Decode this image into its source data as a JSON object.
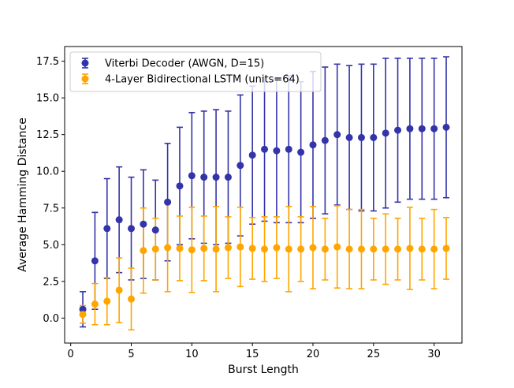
{
  "chart_data": {
    "type": "scatter",
    "title": "",
    "xlabel": "Burst Length",
    "ylabel": "Average Hamming Distance",
    "xlim": [
      -0.5,
      32.3
    ],
    "ylim": [
      -1.7,
      18.5
    ],
    "xticks": [
      0,
      5,
      10,
      15,
      20,
      25,
      30
    ],
    "xtick_labels": [
      "0",
      "5",
      "10",
      "15",
      "20",
      "25",
      "30"
    ],
    "yticks": [
      0.0,
      2.5,
      5.0,
      7.5,
      10.0,
      12.5,
      15.0,
      17.5
    ],
    "ytick_labels": [
      "0.0",
      "2.5",
      "5.0",
      "7.5",
      "10.0",
      "12.5",
      "15.0",
      "17.5"
    ],
    "grid": false,
    "legend_position": "upper-left",
    "series": [
      {
        "name": "Viterbi Decoder (AWGN, D=15)",
        "color": "#3333aa",
        "x": [
          1,
          2,
          3,
          4,
          5,
          6,
          7,
          8,
          9,
          10,
          11,
          12,
          13,
          14,
          15,
          16,
          17,
          18,
          19,
          20,
          21,
          22,
          23,
          24,
          25,
          26,
          27,
          28,
          29,
          30,
          31
        ],
        "y": [
          0.6,
          3.9,
          6.1,
          6.7,
          6.1,
          6.4,
          6.0,
          7.9,
          9.0,
          9.7,
          9.6,
          9.6,
          9.6,
          10.4,
          11.1,
          11.5,
          11.4,
          11.5,
          11.3,
          11.8,
          12.1,
          12.5,
          12.3,
          12.3,
          12.3,
          12.6,
          12.8,
          12.9,
          12.9,
          12.9,
          13.0
        ],
        "err": [
          1.2,
          3.3,
          3.4,
          3.6,
          3.5,
          3.7,
          3.4,
          4.0,
          4.0,
          4.3,
          4.5,
          4.6,
          4.5,
          4.8,
          4.7,
          4.9,
          4.9,
          5.0,
          4.8,
          5.0,
          5.0,
          4.8,
          4.9,
          5.0,
          5.0,
          5.1,
          4.9,
          4.8,
          4.8,
          4.8,
          4.8
        ]
      },
      {
        "name": "4-Layer Bidirectional LSTM (units=64)",
        "color": "#ffa500",
        "x": [
          1,
          2,
          3,
          4,
          5,
          6,
          7,
          8,
          9,
          10,
          11,
          12,
          13,
          14,
          15,
          16,
          17,
          18,
          19,
          20,
          21,
          22,
          23,
          24,
          25,
          26,
          27,
          28,
          29,
          30,
          31
        ],
        "y": [
          0.25,
          0.95,
          1.15,
          1.9,
          1.3,
          4.6,
          4.7,
          4.8,
          4.75,
          4.65,
          4.75,
          4.7,
          4.8,
          4.85,
          4.75,
          4.7,
          4.8,
          4.7,
          4.7,
          4.8,
          4.7,
          4.85,
          4.7,
          4.7,
          4.7,
          4.7,
          4.7,
          4.75,
          4.7,
          4.7,
          4.75
        ],
        "err": [
          0.6,
          1.4,
          1.6,
          2.2,
          2.1,
          2.9,
          2.1,
          3.0,
          2.2,
          2.9,
          2.2,
          2.9,
          2.1,
          2.7,
          2.1,
          2.2,
          2.1,
          2.9,
          2.2,
          2.8,
          2.1,
          2.8,
          2.7,
          2.7,
          2.1,
          2.4,
          2.1,
          2.8,
          2.1,
          2.7,
          2.1
        ]
      }
    ]
  }
}
